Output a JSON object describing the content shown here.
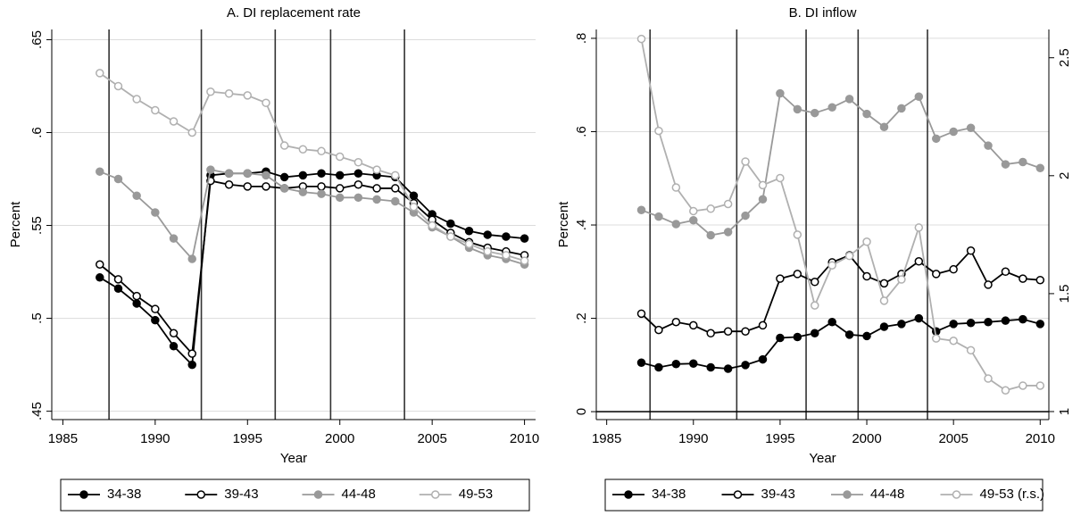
{
  "chart_data": [
    {
      "type": "line",
      "title": "A. DI replacement rate",
      "xlabel": "Year",
      "ylabel": "Percent",
      "xlim": [
        1984.4,
        2010.6
      ],
      "ylim": [
        0.4455,
        0.6555
      ],
      "xticks": [
        1985,
        1990,
        1995,
        2000,
        2005,
        2010
      ],
      "yticks": [
        {
          "value": 0.45,
          "label": ".45"
        },
        {
          "value": 0.5,
          "label": ".5"
        },
        {
          "value": 0.55,
          "label": ".55"
        },
        {
          "value": 0.6,
          "label": ".6"
        },
        {
          "value": 0.65,
          "label": ".65"
        }
      ],
      "grid": true,
      "legend": "bottom",
      "vlines": [
        1987.5,
        1992.5,
        1996.5,
        1999.5,
        2003.5
      ],
      "x": [
        1987,
        1988,
        1989,
        1990,
        1991,
        1992,
        1993,
        1994,
        1995,
        1996,
        1997,
        1998,
        1999,
        2000,
        2001,
        2002,
        2003,
        2004,
        2005,
        2006,
        2007,
        2008,
        2009,
        2010
      ],
      "series": [
        {
          "name": "34-38",
          "color": "#000000",
          "marker": "filled",
          "values": [
            0.522,
            0.516,
            0.508,
            0.499,
            0.485,
            0.475,
            0.577,
            0.578,
            0.578,
            0.579,
            0.576,
            0.577,
            0.578,
            0.577,
            0.578,
            0.577,
            0.576,
            0.566,
            0.556,
            0.551,
            0.547,
            0.545,
            0.544,
            0.543
          ]
        },
        {
          "name": "39-43",
          "color": "#000000",
          "marker": "hollow",
          "values": [
            0.529,
            0.521,
            0.512,
            0.505,
            0.492,
            0.481,
            0.574,
            0.572,
            0.571,
            0.571,
            0.57,
            0.571,
            0.571,
            0.57,
            0.572,
            0.57,
            0.57,
            0.562,
            0.553,
            0.546,
            0.541,
            0.538,
            0.536,
            0.534
          ]
        },
        {
          "name": "44-48",
          "color": "#999999",
          "marker": "filled",
          "values": [
            0.579,
            0.575,
            0.566,
            0.557,
            0.543,
            0.532,
            0.58,
            0.578,
            0.578,
            0.577,
            0.57,
            0.568,
            0.567,
            0.565,
            0.565,
            0.564,
            0.563,
            0.557,
            0.549,
            0.544,
            0.538,
            0.534,
            0.532,
            0.529
          ]
        },
        {
          "name": "49-53",
          "color": "#b0b0b0",
          "marker": "hollow",
          "values": [
            0.632,
            0.625,
            0.618,
            0.612,
            0.606,
            0.6,
            0.622,
            0.621,
            0.62,
            0.616,
            0.593,
            0.591,
            0.59,
            0.587,
            0.584,
            0.58,
            0.577,
            0.56,
            0.55,
            0.544,
            0.54,
            0.536,
            0.534,
            0.531
          ]
        }
      ]
    },
    {
      "type": "line",
      "title": "B. DI inflow",
      "xlabel": "Year",
      "ylabel": "Percent",
      "xlim": [
        1984.4,
        2010.5
      ],
      "ylim": [
        -0.017,
        0.819
      ],
      "y2lim": [
        0.966,
        2.62
      ],
      "xticks": [
        1985,
        1990,
        1995,
        2000,
        2005,
        2010
      ],
      "yticks": [
        0,
        {
          "value": 0.2,
          "label": ".2"
        },
        {
          "value": 0.4,
          "label": ".4"
        },
        {
          "value": 0.6,
          "label": ".6"
        },
        {
          "value": 0.8,
          "label": ".8"
        }
      ],
      "y2ticks": [
        1,
        1.5,
        2,
        2.5
      ],
      "grid": true,
      "legend": "bottom",
      "vlines": [
        1987.5,
        1992.5,
        1996.5,
        1999.5,
        2003.5
      ],
      "hlines": [
        0
      ],
      "x": [
        1987,
        1988,
        1989,
        1990,
        1991,
        1992,
        1993,
        1994,
        1995,
        1996,
        1997,
        1998,
        1999,
        2000,
        2001,
        2002,
        2003,
        2004,
        2005,
        2006,
        2007,
        2008,
        2009,
        2010
      ],
      "series": [
        {
          "name": "34-38",
          "color": "#000000",
          "marker": "filled",
          "values": [
            0.105,
            0.095,
            0.102,
            0.103,
            0.095,
            0.092,
            0.1,
            0.112,
            0.158,
            0.16,
            0.168,
            0.192,
            0.165,
            0.162,
            0.182,
            0.188,
            0.2,
            0.172,
            0.188,
            0.19,
            0.192,
            0.195,
            0.198,
            0.188
          ]
        },
        {
          "name": "39-43",
          "color": "#000000",
          "marker": "hollow",
          "values": [
            0.21,
            0.175,
            0.192,
            0.185,
            0.168,
            0.172,
            0.172,
            0.185,
            0.285,
            0.295,
            0.278,
            0.32,
            0.335,
            0.29,
            0.275,
            0.295,
            0.322,
            0.295,
            0.305,
            0.345,
            0.272,
            0.3,
            0.285,
            0.282
          ]
        },
        {
          "name": "44-48",
          "color": "#999999",
          "marker": "filled",
          "values": [
            0.432,
            0.418,
            0.402,
            0.41,
            0.378,
            0.385,
            0.42,
            0.455,
            0.682,
            0.648,
            0.64,
            0.652,
            0.67,
            0.638,
            0.61,
            0.65,
            0.675,
            0.585,
            0.6,
            0.608,
            0.57,
            0.53,
            0.535,
            0.522
          ]
        },
        {
          "name": "49-53 (r.s.)",
          "color": "#b0b0b0",
          "marker": "hollow",
          "axis": "y2",
          "values": [
            2.58,
            2.19,
            1.95,
            1.85,
            1.86,
            1.88,
            2.06,
            1.96,
            1.99,
            1.75,
            1.45,
            1.62,
            1.66,
            1.72,
            1.47,
            1.56,
            1.78,
            1.31,
            1.3,
            1.26,
            1.14,
            1.09,
            1.11,
            1.11
          ]
        }
      ]
    }
  ]
}
